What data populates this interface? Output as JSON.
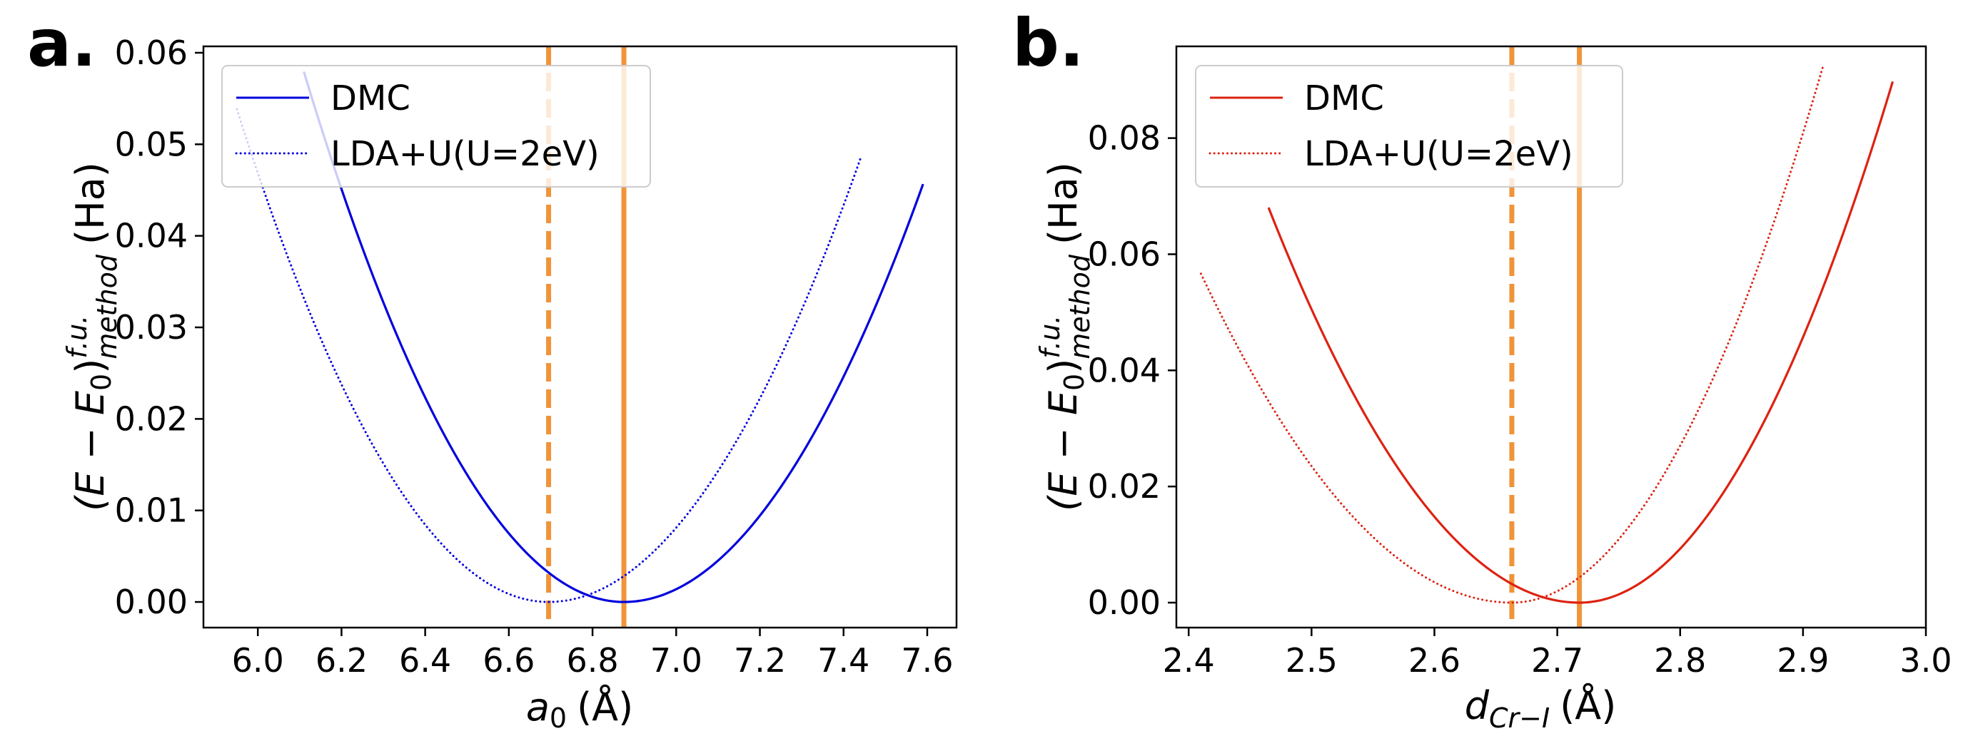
{
  "chart_data": [
    {
      "type": "line",
      "panel_label": "a.",
      "xlabel_main": "a",
      "xlabel_sub": "0",
      "xlabel_unit": "(Å)",
      "ylabel_main": "(E − E",
      "ylabel_sub0": "0",
      "ylabel_mid": ")",
      "ylabel_sup": "f.u.",
      "ylabel_subm": "method",
      "ylabel_unit": "(Ha)",
      "xlim": [
        5.87,
        7.67
      ],
      "ylim": [
        -0.0028,
        0.0607
      ],
      "xticks": [
        6.0,
        6.2,
        6.4,
        6.6,
        6.8,
        7.0,
        7.2,
        7.4,
        7.6
      ],
      "xtick_labels": [
        "6.0",
        "6.2",
        "6.4",
        "6.6",
        "6.8",
        "7.0",
        "7.2",
        "7.4",
        "7.6"
      ],
      "yticks": [
        0.0,
        0.01,
        0.02,
        0.03,
        0.04,
        0.05,
        0.06
      ],
      "ytick_labels": [
        "0.00",
        "0.01",
        "0.02",
        "0.03",
        "0.04",
        "0.05",
        "0.06"
      ],
      "series_color": "#0000dd",
      "vline_color": "#f0943a",
      "series": [
        {
          "name": "DMC",
          "style": "solid",
          "x_min": 6.11,
          "x_center": 6.875,
          "k_left": 0.099,
          "k_right": 0.0893,
          "x_max": 7.59
        },
        {
          "name": "LDA+U(U=2eV)",
          "style": "dotted",
          "x_min": 5.95,
          "x_center": 6.695,
          "k_left": 0.097,
          "k_right": 0.0872,
          "x_max": 7.44
        }
      ],
      "vlines": [
        {
          "x": 6.695,
          "style": "dashed"
        },
        {
          "x": 6.875,
          "style": "solid"
        }
      ],
      "legend_loc": "upper-left"
    },
    {
      "type": "line",
      "panel_label": "b.",
      "xlabel_main": "d",
      "xlabel_sub": "Cr−I",
      "xlabel_unit": "(Å)",
      "ylabel_main": "(E − E",
      "ylabel_sub0": "0",
      "ylabel_mid": ")",
      "ylabel_sup": "f.u.",
      "ylabel_subm": "method",
      "ylabel_unit": "(Ha)",
      "xlim": [
        2.39,
        3.0
      ],
      "ylim": [
        -0.0043,
        0.0958
      ],
      "xticks": [
        2.4,
        2.5,
        2.6,
        2.7,
        2.8,
        2.9,
        3.0
      ],
      "xtick_labels": [
        "2.4",
        "2.5",
        "2.6",
        "2.7",
        "2.8",
        "2.9",
        "3.0"
      ],
      "yticks": [
        0.0,
        0.02,
        0.04,
        0.06,
        0.08
      ],
      "ytick_labels": [
        "0.00",
        "0.02",
        "0.04",
        "0.06",
        "0.08"
      ],
      "series_color": "#dd2211",
      "vline_color": "#f0943a",
      "series": [
        {
          "name": "DMC",
          "style": "solid",
          "x_min": 2.465,
          "x_center": 2.718,
          "k_left": 1.063,
          "k_right": 1.38,
          "x_max": 2.973
        },
        {
          "name": "LDA+U(U=2eV)",
          "style": "dotted",
          "x_min": 2.41,
          "x_center": 2.663,
          "k_left": 0.885,
          "k_right": 1.44,
          "x_max": 2.916
        }
      ],
      "vlines": [
        {
          "x": 2.663,
          "style": "dashed"
        },
        {
          "x": 2.718,
          "style": "solid"
        }
      ],
      "legend_loc": "upper-left"
    }
  ]
}
